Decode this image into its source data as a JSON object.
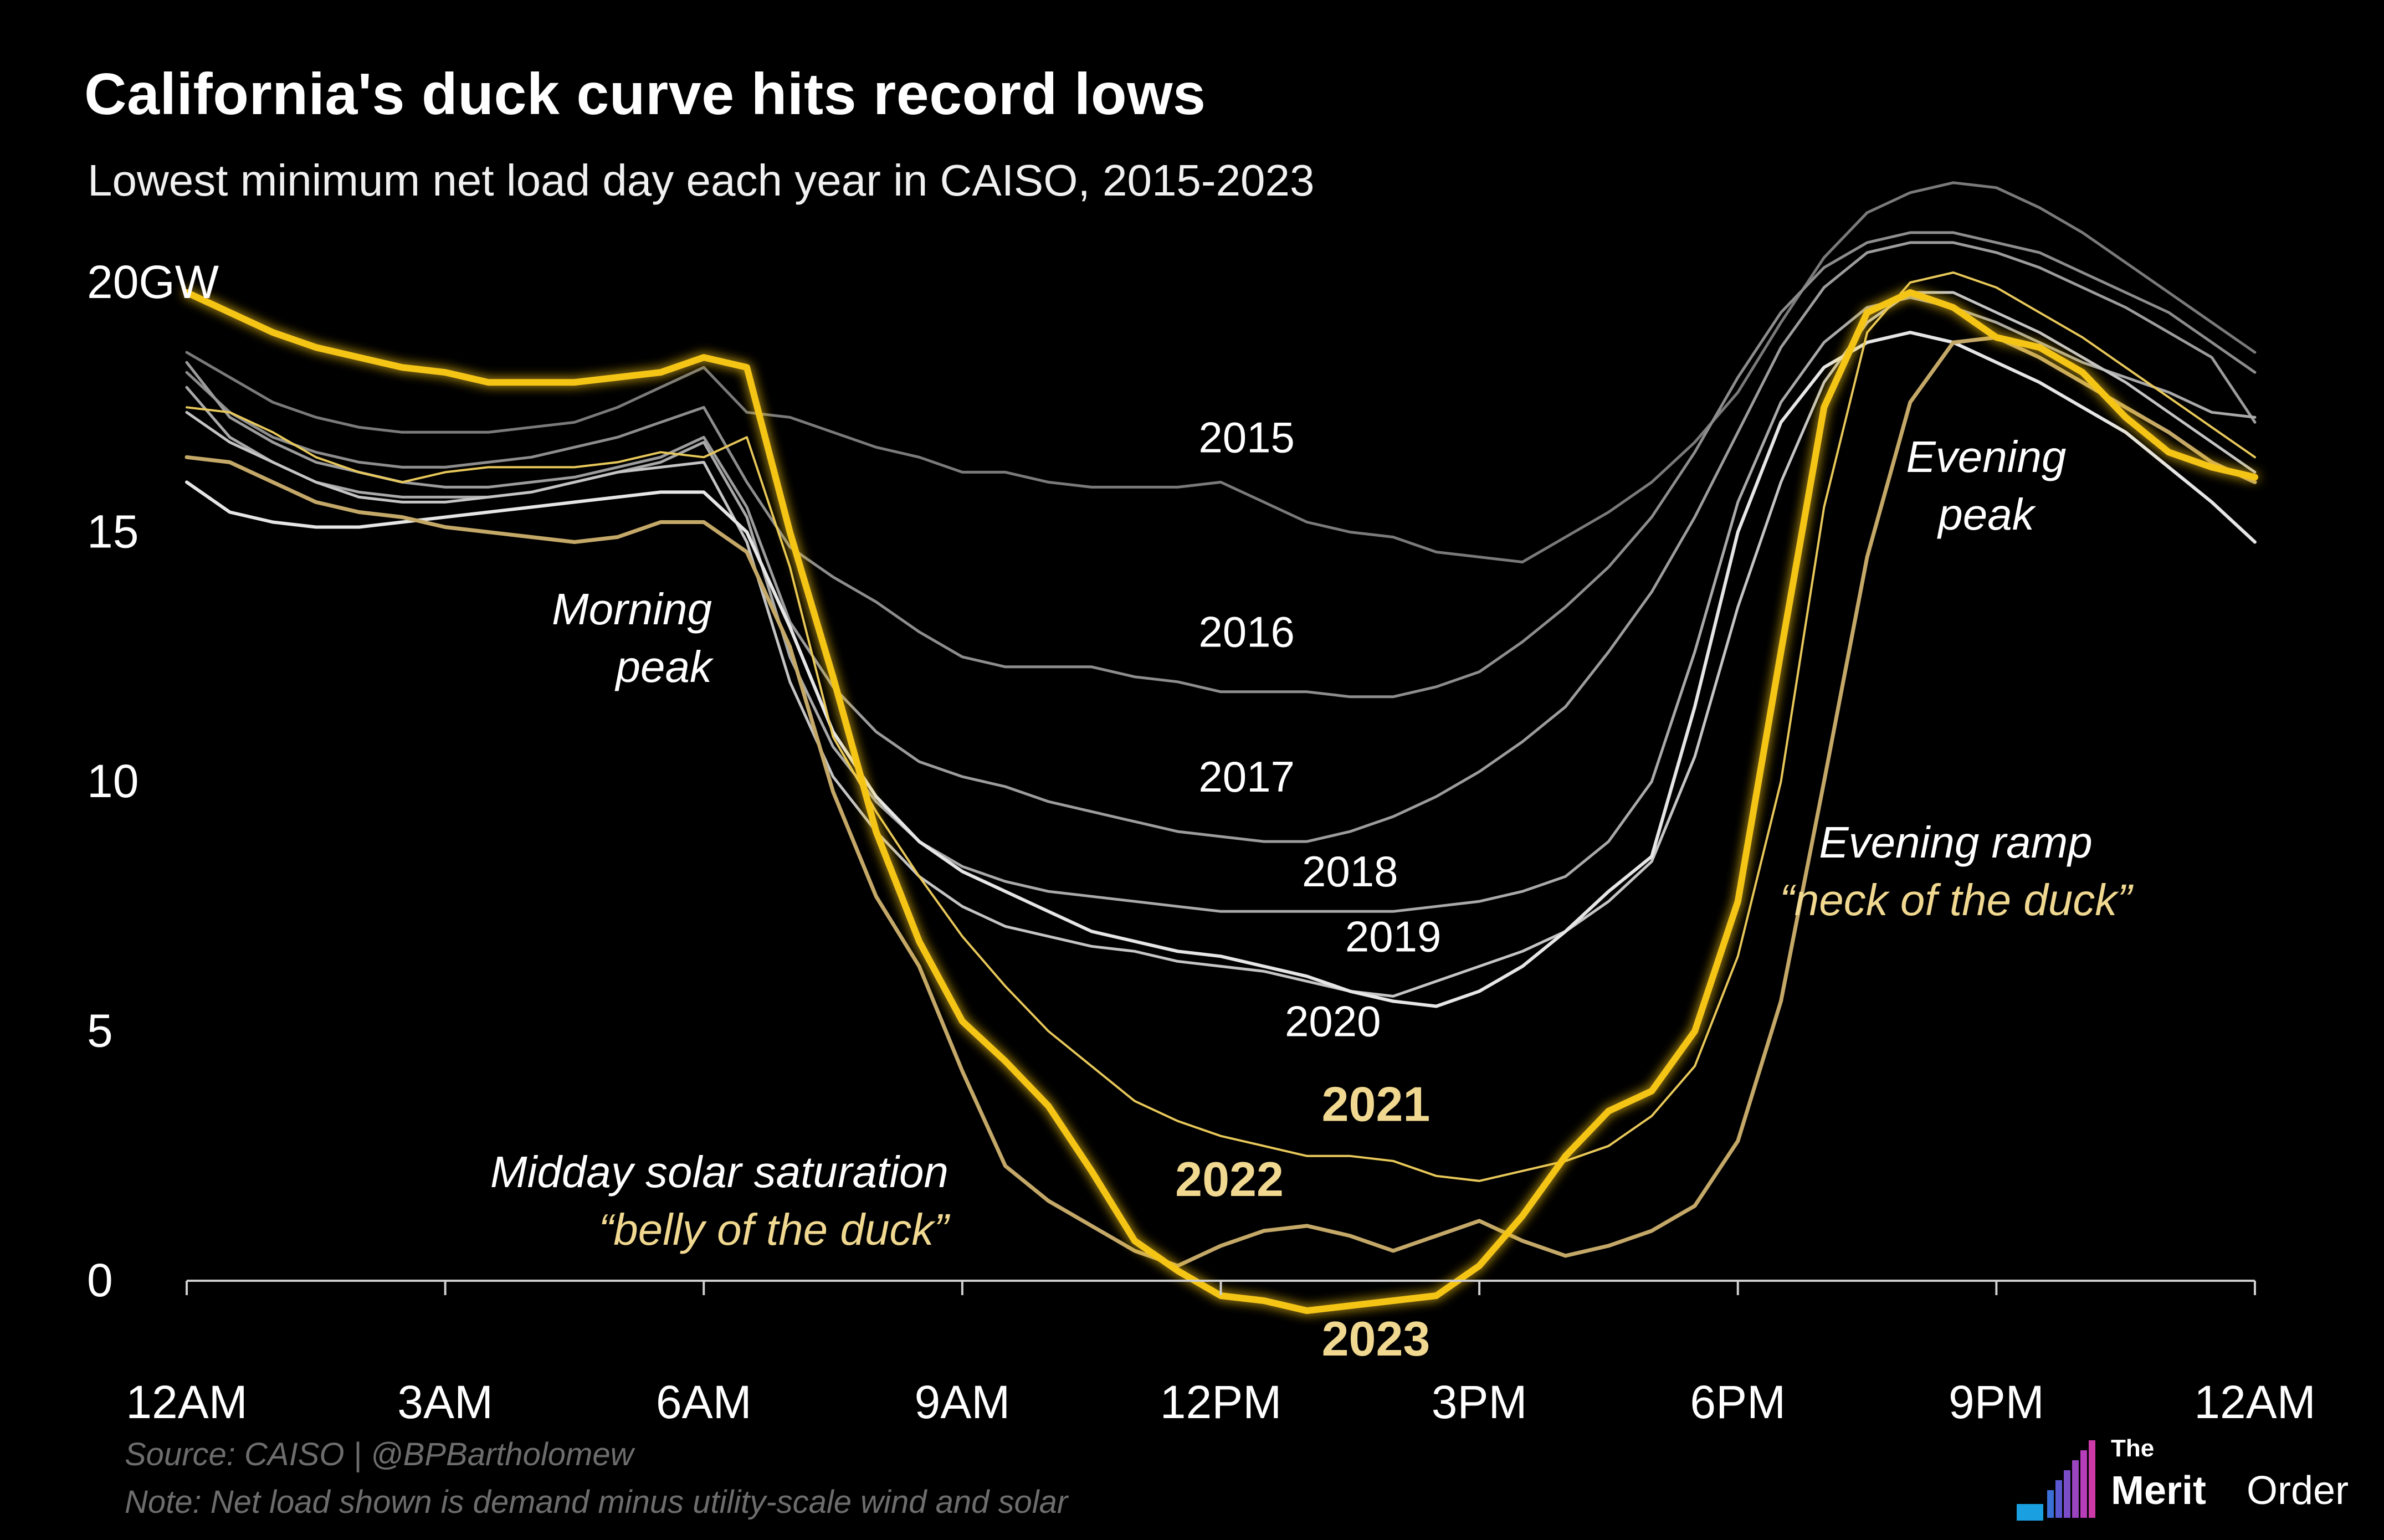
{
  "title": "California's duck curve hits record lows",
  "subtitle": "Lowest minimum net load day each year in CAISO, 2015-2023",
  "source": "Source: CAISO | @BPBartholomew",
  "note": "Note: Net load shown is demand minus utility-scale wind and solar",
  "logo": {
    "the": "The",
    "merit": "Merit",
    "order": "Order"
  },
  "colors": {
    "background": "#000000",
    "highlight": "#f5c518",
    "label_gold": "#f0d890",
    "dim_gold": "#c4a868",
    "grey": "#8a8a8a"
  },
  "annotations": {
    "morning": [
      "Morning",
      "peak"
    ],
    "evening": [
      "Evening",
      "peak"
    ],
    "ramp": [
      "Evening ramp",
      "“neck of the duck”"
    ],
    "midday": [
      "Midday solar saturation",
      "“belly of the duck”"
    ]
  },
  "chart_data": {
    "type": "line",
    "x_unit": "hour of day",
    "xlim": [
      0,
      24
    ],
    "ylim": [
      -1,
      20
    ],
    "y_ticks": [
      0,
      5,
      10,
      15,
      20
    ],
    "y_tick_labels": [
      "0",
      "5",
      "10",
      "15",
      "20GW"
    ],
    "x_ticks": [
      0,
      3,
      6,
      9,
      12,
      15,
      18,
      21,
      24
    ],
    "x_tick_labels": [
      "12AM",
      "3AM",
      "6AM",
      "9AM",
      "12PM",
      "3PM",
      "6PM",
      "9PM",
      "12AM"
    ],
    "x": [
      0,
      0.5,
      1,
      1.5,
      2,
      2.5,
      3,
      3.5,
      4,
      4.5,
      5,
      5.5,
      6,
      6.5,
      7,
      7.5,
      8,
      8.5,
      9,
      9.5,
      10,
      10.5,
      11,
      11.5,
      12,
      12.5,
      13,
      13.5,
      14,
      14.5,
      15,
      15.5,
      16,
      16.5,
      17,
      17.5,
      18,
      18.5,
      19,
      19.5,
      20,
      20.5,
      21,
      21.5,
      22,
      22.5,
      23,
      23.5,
      24
    ],
    "series": [
      {
        "name": "2015",
        "label_x": 12.3,
        "label_y": 16.6,
        "values": [
          18.6,
          18.1,
          17.6,
          17.3,
          17.1,
          17.0,
          17.0,
          17.0,
          17.1,
          17.2,
          17.5,
          17.9,
          18.3,
          17.4,
          17.3,
          17.0,
          16.7,
          16.5,
          16.2,
          16.2,
          16.0,
          15.9,
          15.9,
          15.9,
          16.0,
          15.6,
          15.2,
          15.0,
          14.9,
          14.6,
          14.5,
          14.4,
          14.9,
          15.4,
          16.0,
          16.8,
          17.8,
          19.2,
          20.5,
          21.4,
          21.8,
          22.0,
          21.9,
          21.5,
          21.0,
          20.4,
          19.8,
          19.2,
          18.6
        ]
      },
      {
        "name": "2016",
        "label_x": 12.3,
        "label_y": 12.7,
        "values": [
          18.2,
          17.4,
          16.9,
          16.6,
          16.4,
          16.3,
          16.3,
          16.4,
          16.5,
          16.7,
          16.9,
          17.2,
          17.5,
          16.0,
          14.7,
          14.1,
          13.6,
          13.0,
          12.5,
          12.3,
          12.3,
          12.3,
          12.1,
          12.0,
          11.8,
          11.8,
          11.8,
          11.7,
          11.7,
          11.9,
          12.2,
          12.8,
          13.5,
          14.3,
          15.3,
          16.6,
          18.1,
          19.4,
          20.3,
          20.8,
          21.0,
          21.0,
          20.8,
          20.6,
          20.2,
          19.8,
          19.4,
          18.8,
          18.2
        ]
      },
      {
        "name": "2017",
        "label_x": 12.3,
        "label_y": 9.8,
        "values": [
          18.4,
          17.3,
          16.8,
          16.4,
          16.2,
          16.0,
          15.9,
          15.9,
          16.0,
          16.1,
          16.3,
          16.5,
          16.9,
          15.5,
          13.2,
          11.9,
          11.0,
          10.4,
          10.1,
          9.9,
          9.6,
          9.4,
          9.2,
          9.0,
          8.9,
          8.8,
          8.8,
          9.0,
          9.3,
          9.7,
          10.2,
          10.8,
          11.5,
          12.6,
          13.8,
          15.3,
          17.0,
          18.7,
          19.9,
          20.6,
          20.8,
          20.8,
          20.6,
          20.3,
          19.9,
          19.5,
          19.0,
          18.5,
          17.2
        ]
      },
      {
        "name": "2018",
        "label_x": 13.5,
        "label_y": 7.9,
        "values": [
          17.9,
          16.9,
          16.4,
          16.0,
          15.8,
          15.7,
          15.7,
          15.7,
          15.8,
          16.0,
          16.2,
          16.4,
          16.8,
          15.3,
          12.5,
          10.7,
          9.6,
          8.8,
          8.3,
          8.0,
          7.8,
          7.7,
          7.6,
          7.5,
          7.4,
          7.4,
          7.4,
          7.4,
          7.4,
          7.5,
          7.6,
          7.8,
          8.1,
          8.8,
          10.0,
          12.6,
          15.6,
          17.6,
          18.8,
          19.5,
          19.7,
          19.5,
          19.2,
          18.8,
          18.4,
          18.1,
          17.8,
          17.4,
          17.3
        ]
      },
      {
        "name": "2019",
        "label_x": 14.0,
        "label_y": 6.6,
        "values": [
          17.4,
          16.8,
          16.4,
          16.0,
          15.7,
          15.6,
          15.6,
          15.7,
          15.8,
          16.0,
          16.2,
          16.3,
          16.4,
          14.8,
          12.0,
          10.1,
          9.0,
          8.1,
          7.5,
          7.1,
          6.9,
          6.7,
          6.6,
          6.4,
          6.3,
          6.2,
          6.0,
          5.8,
          5.7,
          6.0,
          6.3,
          6.6,
          7.0,
          7.6,
          8.4,
          10.5,
          13.5,
          16.0,
          18.0,
          19.2,
          19.8,
          19.8,
          19.4,
          19.0,
          18.5,
          18.0,
          17.4,
          16.8,
          16.2
        ]
      },
      {
        "name": "2020",
        "label_x": 13.3,
        "label_y": 4.9,
        "values": [
          16.0,
          15.4,
          15.2,
          15.1,
          15.1,
          15.2,
          15.3,
          15.4,
          15.5,
          15.6,
          15.7,
          15.8,
          15.8,
          15.0,
          13.1,
          11.0,
          9.7,
          8.8,
          8.2,
          7.8,
          7.4,
          7.0,
          6.8,
          6.6,
          6.5,
          6.3,
          6.1,
          5.8,
          5.6,
          5.5,
          5.8,
          6.3,
          7.0,
          7.8,
          8.5,
          11.5,
          15.0,
          17.2,
          18.3,
          18.8,
          19.0,
          18.8,
          18.4,
          18.0,
          17.5,
          17.0,
          16.3,
          15.6,
          14.8
        ]
      },
      {
        "name": "2021",
        "label_x": 13.8,
        "label_y": 3.2,
        "values": [
          17.5,
          17.4,
          17.0,
          16.5,
          16.2,
          16.0,
          16.2,
          16.3,
          16.3,
          16.3,
          16.4,
          16.6,
          16.5,
          16.9,
          14.3,
          10.9,
          9.4,
          8.1,
          6.9,
          5.9,
          5.0,
          4.3,
          3.6,
          3.2,
          2.9,
          2.7,
          2.5,
          2.5,
          2.4,
          2.1,
          2.0,
          2.2,
          2.4,
          2.7,
          3.3,
          4.3,
          6.5,
          10.0,
          15.5,
          19.0,
          20.0,
          20.2,
          19.9,
          19.4,
          18.9,
          18.3,
          17.7,
          17.1,
          16.5
        ]
      },
      {
        "name": "2022",
        "label_x": 12.1,
        "label_y": 1.7,
        "values": [
          16.5,
          16.4,
          16.0,
          15.6,
          15.4,
          15.3,
          15.1,
          15.0,
          14.9,
          14.8,
          14.9,
          15.2,
          15.2,
          14.6,
          12.7,
          9.8,
          7.7,
          6.3,
          4.2,
          2.3,
          1.6,
          1.1,
          0.6,
          0.3,
          0.7,
          1.0,
          1.1,
          0.9,
          0.6,
          0.9,
          1.2,
          0.8,
          0.5,
          0.7,
          1.0,
          1.5,
          2.8,
          5.6,
          10.0,
          14.5,
          17.6,
          18.8,
          18.9,
          18.5,
          18.0,
          17.5,
          17.0,
          16.4,
          16.0
        ]
      },
      {
        "name": "2023",
        "label_x": 13.8,
        "label_y": -1.5,
        "highlight": true,
        "values": [
          19.8,
          19.4,
          19.0,
          18.7,
          18.5,
          18.3,
          18.2,
          18.0,
          18.0,
          18.0,
          18.1,
          18.2,
          18.5,
          18.3,
          15.0,
          12.1,
          9.0,
          6.8,
          5.2,
          4.4,
          3.5,
          2.2,
          0.8,
          0.2,
          -0.3,
          -0.4,
          -0.6,
          -0.5,
          -0.4,
          -0.3,
          0.3,
          1.3,
          2.5,
          3.4,
          3.8,
          5.0,
          7.6,
          12.6,
          17.5,
          19.4,
          19.8,
          19.5,
          18.9,
          18.7,
          18.2,
          17.3,
          16.6,
          16.3,
          16.1
        ]
      }
    ]
  }
}
